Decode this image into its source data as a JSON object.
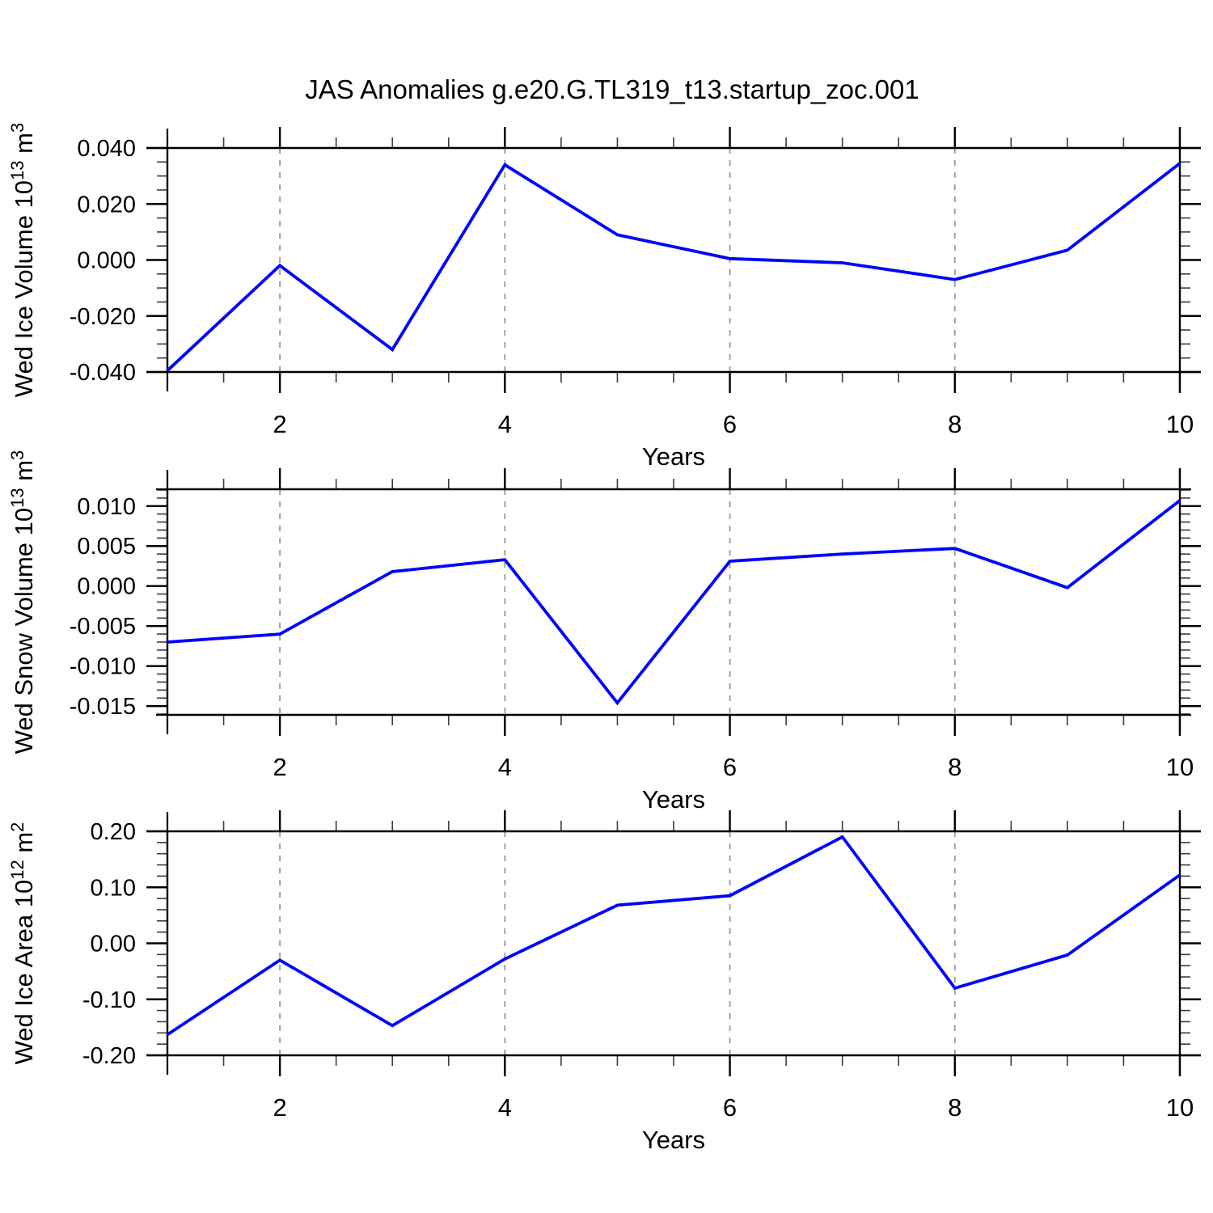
{
  "figure": {
    "title": "JAS Anomalies g.e20.G.TL319_t13.startup_zoc.001",
    "line_color": "#0000ff",
    "background": "#ffffff",
    "frame_color": "#000000",
    "grid_color": "#999999",
    "minor_tick_color": "#3c3c3c"
  },
  "chart_data": [
    {
      "type": "line",
      "title": "",
      "xlabel": "Years",
      "ylabel": "Wed Ice Volume 10^13 m^3",
      "ylabel_segments": [
        {
          "text": "Wed Ice Volume 10",
          "sup": false
        },
        {
          "text": "13",
          "sup": true
        },
        {
          "text": " m",
          "sup": false
        },
        {
          "text": "3",
          "sup": true
        }
      ],
      "x": [
        1,
        2,
        3,
        4,
        5,
        6,
        7,
        8,
        9,
        10
      ],
      "values": [
        -0.0395,
        -0.002,
        -0.032,
        0.034,
        0.009,
        0.0005,
        -0.001,
        -0.007,
        0.0035,
        0.0345
      ],
      "xlim": [
        1,
        10
      ],
      "ylim": [
        -0.04,
        0.04
      ],
      "x_tick_labels": [
        "2",
        "4",
        "6",
        "8",
        "10"
      ],
      "x_minor_step": 0.5,
      "y_tick_labels": [
        "0.040",
        "0.020",
        "0.000",
        "-0.020",
        "-0.040"
      ],
      "y_minor_step": 0.005,
      "grid_x": [
        2,
        4,
        6,
        8
      ],
      "grid_style": "x-dashed",
      "legend": "none"
    },
    {
      "type": "line",
      "title": "",
      "xlabel": "Years",
      "ylabel": "Wed Snow Volume 10^13 m^3",
      "ylabel_segments": [
        {
          "text": "Wed Snow Volume 10",
          "sup": false
        },
        {
          "text": "13",
          "sup": true
        },
        {
          "text": " m",
          "sup": false
        },
        {
          "text": "3",
          "sup": true
        }
      ],
      "x": [
        1,
        2,
        3,
        4,
        5,
        6,
        7,
        8,
        9,
        10
      ],
      "values": [
        -0.007,
        -0.006,
        0.0018,
        0.0033,
        -0.0146,
        0.0031,
        0.004,
        0.0047,
        -0.0002,
        0.0107
      ],
      "xlim": [
        1,
        10
      ],
      "ylim": [
        -0.0161,
        0.0121
      ],
      "x_tick_labels": [
        "2",
        "4",
        "6",
        "8",
        "10"
      ],
      "x_minor_step": 0.5,
      "y_tick_labels": [
        "0.010",
        "0.005",
        "0.000",
        "-0.005",
        "-0.010",
        "-0.015"
      ],
      "y_minor_step": 0.001,
      "grid_x": [
        2,
        4,
        6,
        8
      ],
      "grid_style": "x-dashed",
      "legend": "none"
    },
    {
      "type": "line",
      "title": "",
      "xlabel": "Years",
      "ylabel": "Wed Ice Area 10^12 m^2",
      "ylabel_segments": [
        {
          "text": "Wed Ice Area 10",
          "sup": false
        },
        {
          "text": "12",
          "sup": true
        },
        {
          "text": " m",
          "sup": false
        },
        {
          "text": "2",
          "sup": true
        }
      ],
      "x": [
        1,
        2,
        3,
        4,
        5,
        6,
        7,
        8,
        9,
        10
      ],
      "values": [
        -0.163,
        -0.03,
        -0.147,
        -0.028,
        0.068,
        0.085,
        0.19,
        -0.08,
        -0.021,
        0.122
      ],
      "xlim": [
        1,
        10
      ],
      "ylim": [
        -0.2,
        0.2
      ],
      "x_tick_labels": [
        "2",
        "4",
        "6",
        "8",
        "10"
      ],
      "x_minor_step": 0.5,
      "y_tick_labels": [
        "0.20",
        "0.10",
        "0.00",
        "-0.10",
        "-0.20"
      ],
      "y_minor_step": 0.02,
      "grid_x": [
        2,
        4,
        6,
        8
      ],
      "grid_style": "x-dashed",
      "legend": "none"
    }
  ]
}
